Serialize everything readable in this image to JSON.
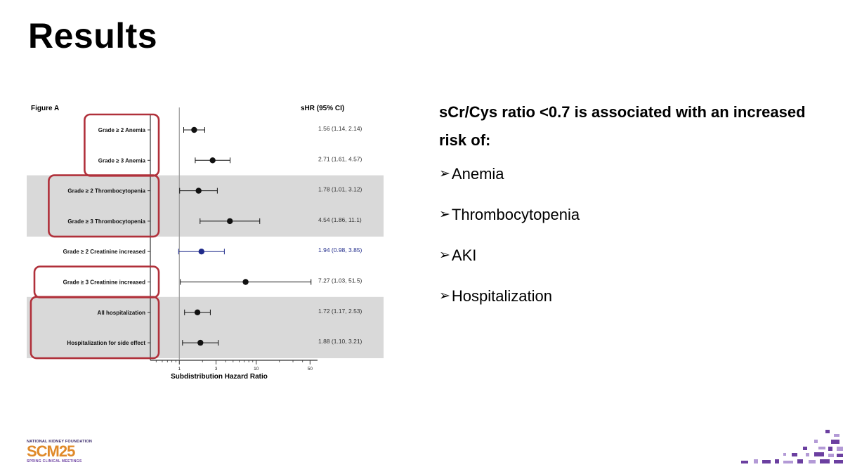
{
  "slide": {
    "title": "Results"
  },
  "figure": {
    "label": "Figure A",
    "shr_header": "sHR (95% CI)",
    "x_axis_label": "Subdistribution Hazard Ratio"
  },
  "chart_data": {
    "type": "forest",
    "title": "Figure A",
    "xlabel": "Subdistribution Hazard Ratio",
    "x_scale": "log",
    "xlim": [
      0.42,
      60
    ],
    "reference_line": 1,
    "ticks": [
      {
        "value": 1,
        "label": "1"
      },
      {
        "value": 3,
        "label": "3"
      },
      {
        "value": 10,
        "label": "10"
      },
      {
        "value": 50,
        "label": "50"
      }
    ],
    "rows": [
      {
        "label": "Grade ≥ 2 Anemia",
        "hr": 1.56,
        "lo": 1.14,
        "hi": 2.14,
        "text": "1.56 (1.14, 2.14)",
        "highlight_box": true,
        "shaded": false,
        "color": "#111111"
      },
      {
        "label": "Grade ≥ 3 Anemia",
        "hr": 2.71,
        "lo": 1.61,
        "hi": 4.57,
        "text": "2.71 (1.61, 4.57)",
        "highlight_box": true,
        "shaded": false,
        "color": "#111111"
      },
      {
        "label": "Grade ≥ 2 Thrombocytopenia",
        "hr": 1.78,
        "lo": 1.01,
        "hi": 3.12,
        "text": "1.78 (1.01, 3.12)",
        "highlight_box": true,
        "shaded": true,
        "color": "#111111"
      },
      {
        "label": "Grade ≥ 3 Thrombocytopenia",
        "hr": 4.54,
        "lo": 1.86,
        "hi": 11.1,
        "text": "4.54 (1.86, 11.1)",
        "highlight_box": true,
        "shaded": true,
        "color": "#111111"
      },
      {
        "label": "Grade ≥ 2 Creatinine increased",
        "hr": 1.94,
        "lo": 0.98,
        "hi": 3.85,
        "text": "1.94 (0.98, 3.85)",
        "highlight_box": false,
        "shaded": false,
        "color": "#1f2a8a"
      },
      {
        "label": "Grade ≥ 3 Creatinine increased",
        "hr": 7.27,
        "lo": 1.03,
        "hi": 51.5,
        "text": "7.27 (1.03, 51.5)",
        "highlight_box": true,
        "shaded": false,
        "color": "#111111"
      },
      {
        "label": "All hospitalization",
        "hr": 1.72,
        "lo": 1.17,
        "hi": 2.53,
        "text": "1.72 (1.17, 2.53)",
        "highlight_box": true,
        "shaded": true,
        "color": "#111111"
      },
      {
        "label": "Hospitalization for side effect",
        "hr": 1.88,
        "lo": 1.1,
        "hi": 3.21,
        "text": "1.88 (1.10, 3.21)",
        "highlight_box": true,
        "shaded": true,
        "color": "#111111"
      }
    ],
    "colors": {
      "shade": "#d9d9d9",
      "box": "#b0303a",
      "ref_line": "#9a9a9a"
    }
  },
  "findings": {
    "headline": "sCr/Cys ratio <0.7 is associated with an increased risk of:",
    "items": [
      {
        "arrow": "➢",
        "label": "Anemia"
      },
      {
        "arrow": "➢",
        "label": "Thrombocytopenia"
      },
      {
        "arrow": "➢",
        "label": "AKI"
      },
      {
        "arrow": "➢",
        "label": "Hospitalization"
      }
    ]
  },
  "logo": {
    "org": "NATIONAL KIDNEY FOUNDATION",
    "scm": "SCM25",
    "sub": "SPRING CLINICAL MEETINGS"
  },
  "brand_colors": {
    "purple": "#6b3fa0",
    "orange": "#e08a2a",
    "navy": "#3a2a6b"
  }
}
